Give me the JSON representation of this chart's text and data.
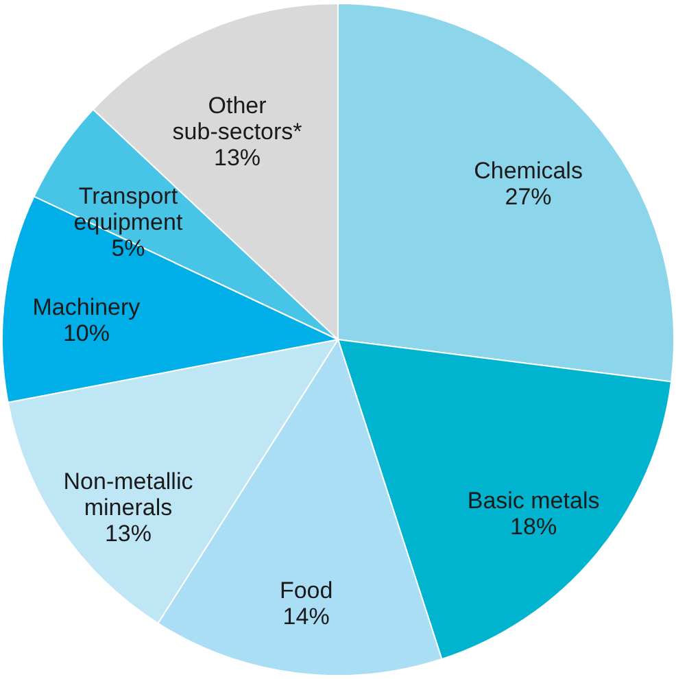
{
  "chart_data": {
    "type": "pie",
    "categories": [
      "Chemicals",
      "Basic metals",
      "Food",
      "Non-metallic minerals",
      "Machinery",
      "Transport equipment",
      "Other sub-sectors*"
    ],
    "values": [
      27,
      18,
      14,
      13,
      10,
      5,
      13
    ],
    "value_labels": [
      "27%",
      "18%",
      "14%",
      "13%",
      "10%",
      "5%",
      "13%"
    ],
    "colors": [
      "#8dd5ea",
      "#00b4d0",
      "#a9def5",
      "#bfe6f4",
      "#00aee8",
      "#48c4e6",
      "#d9d9d9"
    ],
    "legend": false
  }
}
